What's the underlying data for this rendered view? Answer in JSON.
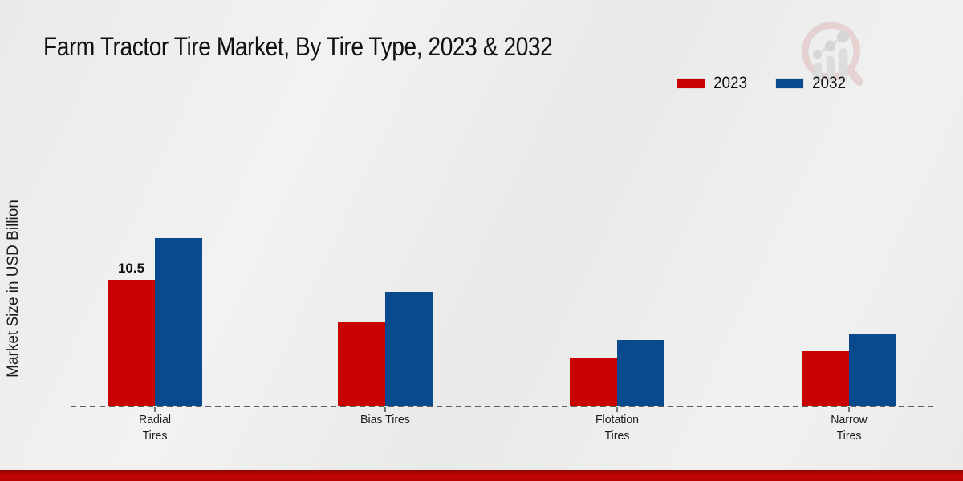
{
  "title": "Farm Tractor Tire Market, By Tire Type, 2023 & 2032",
  "y_axis_label": "Market Size in USD Billion",
  "legend": {
    "position": "top-right",
    "items": [
      {
        "label": "2023",
        "color": "#c80101"
      },
      {
        "label": "2032",
        "color": "#084a8d"
      }
    ]
  },
  "logo": {
    "name": "magnifier-bar-chart-watermark"
  },
  "colors": {
    "bar_2023": "#c80101",
    "bar_2032": "#084a8d",
    "baseline": "#4a4a4a",
    "bottom_strip": "#bf0404",
    "background": "#ededed"
  },
  "chart_data": {
    "type": "bar",
    "title": "Farm Tractor Tire Market, By Tire Type, 2023 & 2032",
    "xlabel": "",
    "ylabel": "Market Size in USD Billion",
    "categories": [
      "Radial Tires",
      "Bias Tires",
      "Flotation Tires",
      "Narrow Tires"
    ],
    "category_labels_display": [
      "Radial\nTires",
      "Bias Tires",
      "Flotation\nTires",
      "Narrow\nTires"
    ],
    "series": [
      {
        "name": "2023",
        "color": "#c80101",
        "values": [
          10.5,
          7.0,
          4.0,
          4.6
        ],
        "bar_labels": [
          "10.5",
          "",
          "",
          ""
        ]
      },
      {
        "name": "2032",
        "color": "#084a8d",
        "values": [
          14.0,
          9.5,
          5.5,
          6.0
        ],
        "bar_labels": [
          "",
          "",
          "",
          ""
        ]
      }
    ],
    "ylim": [
      0,
      15
    ],
    "grid": false,
    "legend_position": "top-right",
    "baseline_style": "dashed",
    "units": "USD Billion"
  }
}
